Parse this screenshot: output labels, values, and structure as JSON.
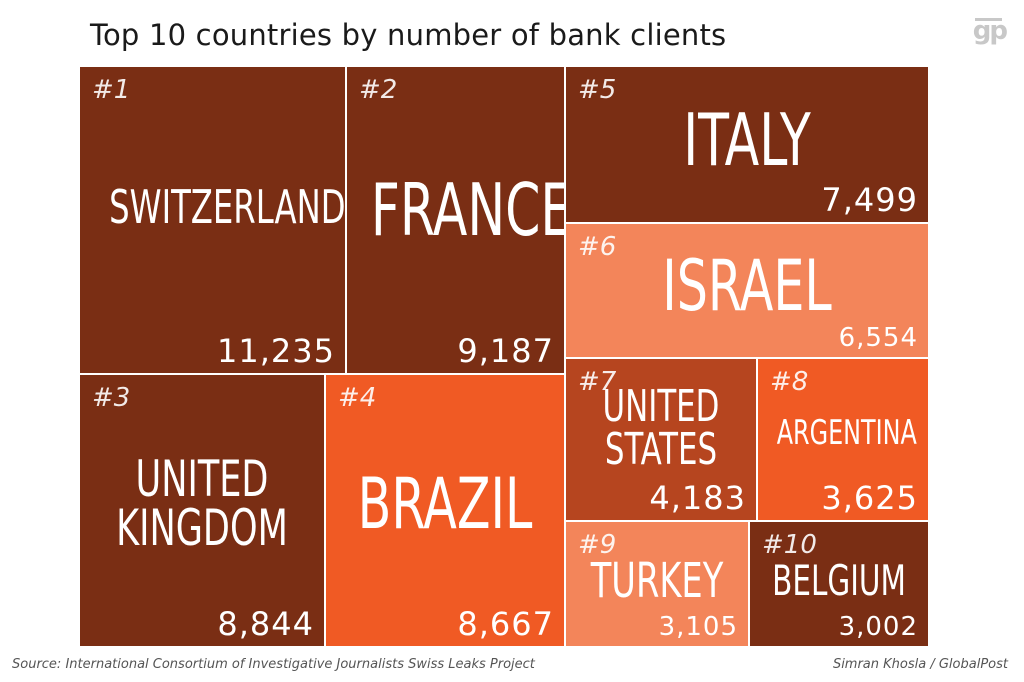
{
  "title": "Top 10 countries by number of bank clients",
  "logo_text": "gp",
  "source": "Source: International Consortium of Investigative Journalists Swiss Leaks Project",
  "credit": "Simran Khosla / GlobalPost",
  "colors": {
    "dark": "#7a2e14",
    "medium": "#b6451f",
    "bright": "#f05a24",
    "light": "#f3855a"
  },
  "chart_data": {
    "type": "treemap",
    "title": "Top 10 countries by number of bank clients",
    "items": [
      {
        "rank": "#1",
        "name": "SWITZERLAND",
        "value": 11235,
        "label": "11,235",
        "color": "dark"
      },
      {
        "rank": "#2",
        "name": "FRANCE",
        "value": 9187,
        "label": "9,187",
        "color": "dark"
      },
      {
        "rank": "#3",
        "name": "UNITED\nKINGDOM",
        "value": 8844,
        "label": "8,844",
        "color": "dark"
      },
      {
        "rank": "#4",
        "name": "BRAZIL",
        "value": 8667,
        "label": "8,667",
        "color": "bright"
      },
      {
        "rank": "#5",
        "name": "ITALY",
        "value": 7499,
        "label": "7,499",
        "color": "dark"
      },
      {
        "rank": "#6",
        "name": "ISRAEL",
        "value": 6554,
        "label": "6,554",
        "color": "light"
      },
      {
        "rank": "#7",
        "name": "UNITED\nSTATES",
        "value": 4183,
        "label": "4,183",
        "color": "medium"
      },
      {
        "rank": "#8",
        "name": "ARGENTINA",
        "value": 3625,
        "label": "3,625",
        "color": "bright"
      },
      {
        "rank": "#9",
        "name": "TURKEY",
        "value": 3105,
        "label": "3,105",
        "color": "light"
      },
      {
        "rank": "#10",
        "name": "BELGIUM",
        "value": 3002,
        "label": "3,002",
        "color": "dark"
      }
    ]
  }
}
